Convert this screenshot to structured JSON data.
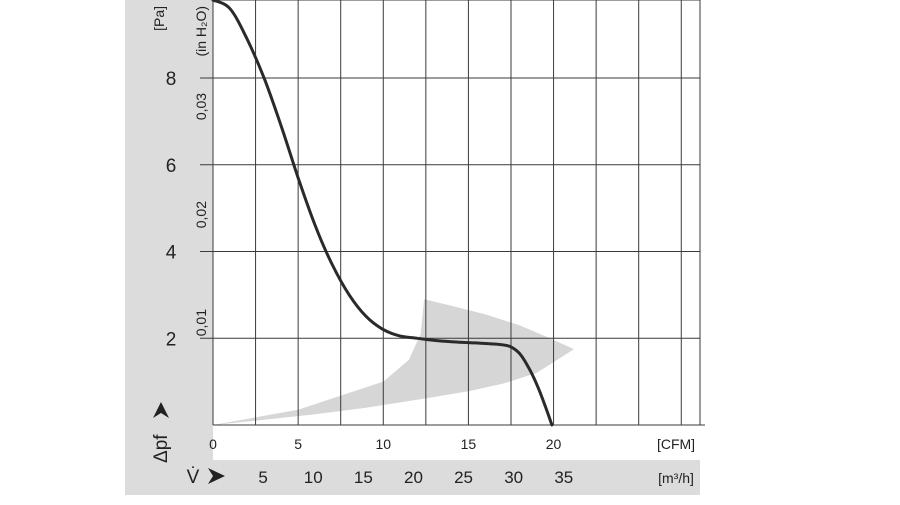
{
  "chart_data": {
    "type": "line",
    "title": "",
    "ylabel": "Δpf",
    "yunit": "[Pa]",
    "ylim": [
      0,
      9.8
    ],
    "yticks": [
      2,
      4,
      6,
      8
    ],
    "y2unit": "(in H₂O)",
    "y2ticks": [
      {
        "value": 0.01,
        "label": "0,01"
      },
      {
        "value": 0.02,
        "label": "0,02"
      },
      {
        "value": 0.03,
        "label": "0,03"
      }
    ],
    "xlabel": "V̇",
    "xunit": "[CFM]",
    "xlim": [
      0,
      28.6
    ],
    "xticks": [
      0,
      5,
      10,
      15,
      20
    ],
    "x2unit": "[m³/h]",
    "x2ticks": [
      5,
      10,
      15,
      20,
      25,
      30,
      35
    ],
    "grid": true,
    "series": [
      {
        "name": "",
        "color": "#2a2a2a",
        "x": [
          0,
          1,
          2,
          3,
          4,
          5,
          6,
          7,
          8,
          9,
          10,
          11,
          12,
          13,
          14,
          15,
          16,
          17,
          17.5,
          18,
          18.5,
          19,
          19.5,
          19.9
        ],
        "y": [
          9.8,
          9.6,
          8.9,
          8.0,
          6.9,
          5.7,
          4.6,
          3.7,
          3.0,
          2.5,
          2.2,
          2.05,
          2.0,
          1.95,
          1.92,
          1.9,
          1.88,
          1.85,
          1.8,
          1.65,
          1.35,
          0.95,
          0.45,
          0.0
        ]
      }
    ],
    "shaded_region": {
      "color": "#d6d6d6",
      "x": [
        0,
        5,
        10,
        11.5,
        12.2,
        12.4,
        14,
        16,
        18,
        19.5,
        21.2,
        19,
        17,
        15,
        12,
        9,
        6,
        3,
        0
      ],
      "y": [
        0,
        0.35,
        1.0,
        1.5,
        2.1,
        2.9,
        2.75,
        2.55,
        2.3,
        2.05,
        1.75,
        1.2,
        0.95,
        0.78,
        0.58,
        0.4,
        0.25,
        0.12,
        0
      ]
    }
  }
}
